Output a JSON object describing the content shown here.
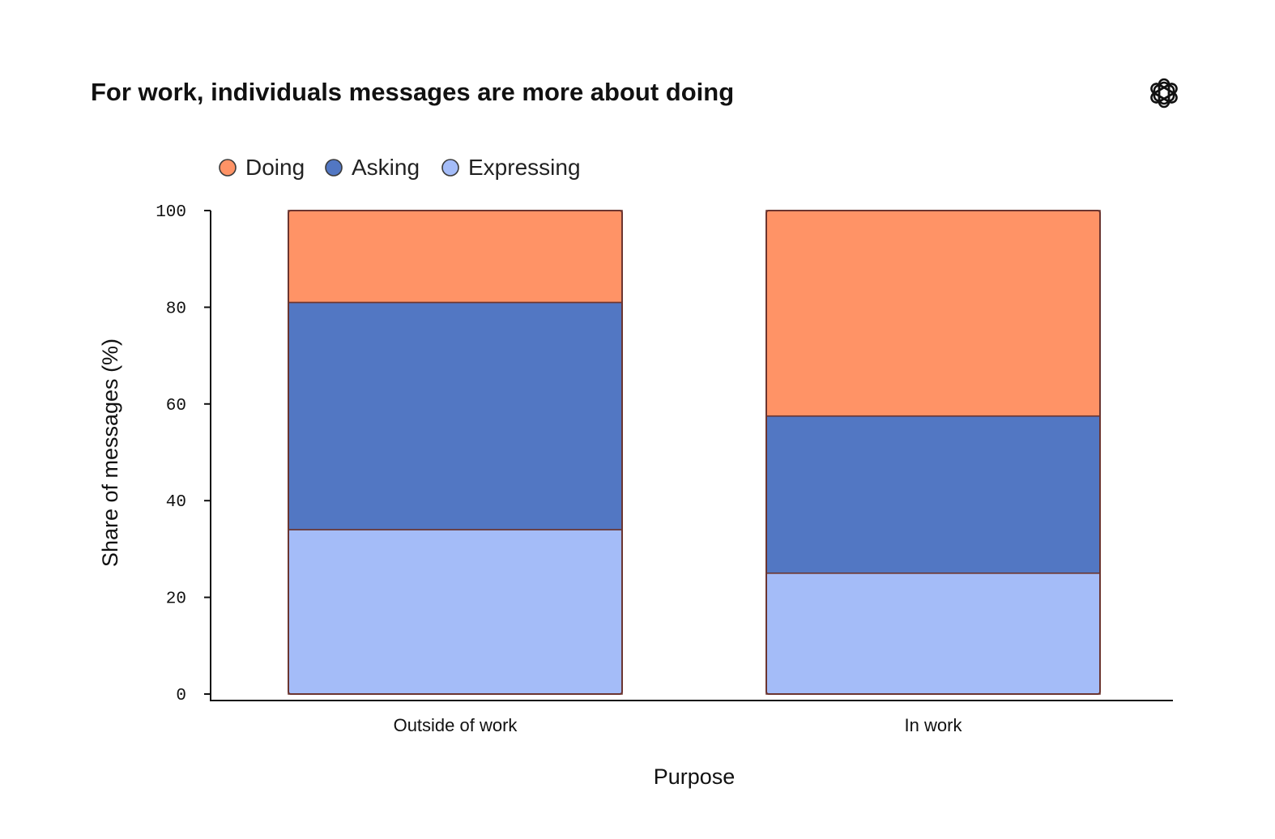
{
  "chart_data": {
    "type": "bar",
    "stacked": true,
    "title": "For work, individuals messages are more about doing",
    "xlabel": "Purpose",
    "ylabel": "Share of messages (%)",
    "categories": [
      "Outside of work",
      "In work"
    ],
    "series": [
      {
        "name": "Expressing",
        "values": [
          34,
          25
        ],
        "color": "#a4bcf8"
      },
      {
        "name": "Asking",
        "values": [
          47,
          32.5
        ],
        "color": "#5277c3"
      },
      {
        "name": "Doing",
        "values": [
          19,
          42.5
        ],
        "color": "#ff9366"
      }
    ],
    "legend_order": [
      "Doing",
      "Asking",
      "Expressing"
    ],
    "yticks": [
      0,
      20,
      40,
      60,
      80,
      100
    ],
    "ylim": [
      0,
      100
    ],
    "grid": false,
    "legend_position": "top-left",
    "bar_edge_color": "#6b3530",
    "logo_icon": "openai-logo-icon"
  }
}
